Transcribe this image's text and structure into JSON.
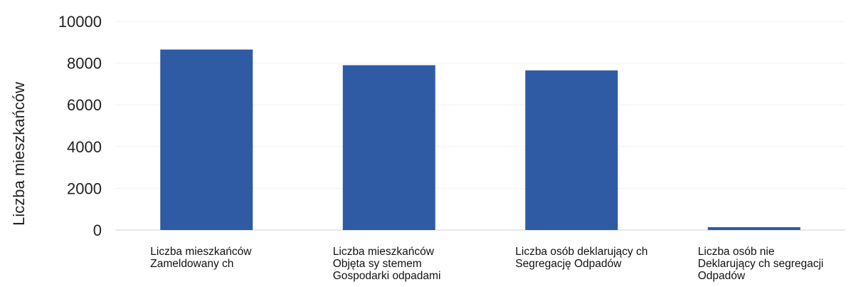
{
  "chart_data": {
    "type": "bar",
    "title": "",
    "xlabel": "",
    "ylabel": "Liczba mieszkańców",
    "ylim": [
      0,
      10000
    ],
    "yticks": [
      0,
      2000,
      4000,
      6000,
      8000,
      10000
    ],
    "grid": true,
    "categories": [
      [
        "Liczba mieszkańców",
        "Zameldowany ch"
      ],
      [
        "Liczba mieszkańców",
        "Objęta sy stemem",
        "Gospodarki odpadami"
      ],
      [
        "Liczba osób deklarujący ch",
        "Segregację Odpadów"
      ],
      [
        "Liczba osób nie",
        "Deklarujący ch segregacji",
        "Odpadów"
      ]
    ],
    "values": [
      8650,
      7900,
      7650,
      30
    ],
    "bar_color": "#2f5ba4"
  }
}
